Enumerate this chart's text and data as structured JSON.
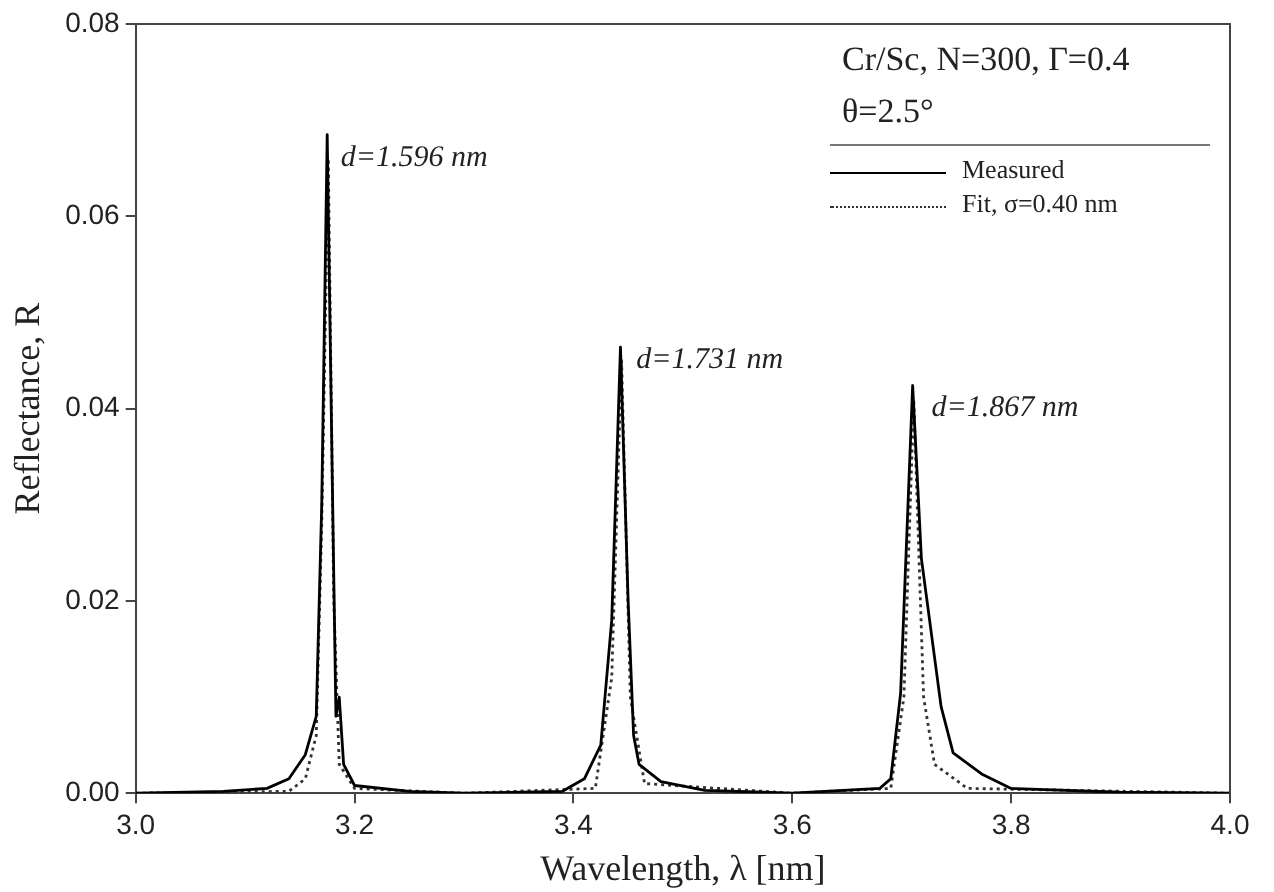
{
  "chart_data": {
    "type": "line",
    "xlabel": "Wavelength, λ [nm]",
    "ylabel": "Reflectance, R",
    "legend": "top right",
    "grid": false,
    "marker": "none",
    "xlim": [
      3.0,
      4.0
    ],
    "xticks": [
      {
        "value": 3.0,
        "label": "3.0"
      },
      {
        "value": 3.2,
        "label": "3.2"
      },
      {
        "value": 3.4,
        "label": "3.4"
      },
      {
        "value": 3.6,
        "label": "3.6"
      },
      {
        "value": 3.8,
        "label": "3.8"
      },
      {
        "value": 4.0,
        "label": "4.0"
      }
    ],
    "ylim": [
      0,
      0.08
    ],
    "yticks": [
      {
        "value": 0,
        "label": "0.00"
      },
      {
        "value": 0.02,
        "label": "0.02"
      },
      {
        "value": 0.04,
        "label": "0.04"
      },
      {
        "value": 0.06,
        "label": "0.06"
      },
      {
        "value": 0.08,
        "label": "0.08"
      }
    ],
    "annotations": [
      "Cr/Sc, N=300, Γ=0.4",
      "θ=2.5°",
      {
        "text": "d=1.596 nm",
        "x": 3.18,
        "y": 0.066
      },
      {
        "text": "d=1.731 nm",
        "x": 3.45,
        "y": 0.045
      },
      {
        "text": "d=1.867 nm",
        "x": 3.72,
        "y": 0.04
      }
    ],
    "series": [
      {
        "name": "Measured",
        "color": "#000000",
        "line_style": "solid",
        "x": [
          3.0,
          3.08,
          3.12,
          3.14,
          3.155,
          3.165,
          3.17,
          3.175,
          3.18,
          3.183,
          3.186,
          3.19,
          3.2,
          3.25,
          3.3,
          3.39,
          3.41,
          3.425,
          3.435,
          3.443,
          3.45,
          3.455,
          3.46,
          3.48,
          3.52,
          3.6,
          3.68,
          3.69,
          3.699,
          3.71,
          3.718,
          3.736,
          3.747,
          3.773,
          3.8,
          3.9,
          4.0
        ],
        "values": [
          0,
          0.0002,
          0.0005,
          0.0015,
          0.004,
          0.008,
          0.03,
          0.0685,
          0.03,
          0.008,
          0.01,
          0.003,
          0.0008,
          0.0002,
          0,
          0.0002,
          0.0015,
          0.005,
          0.018,
          0.0464,
          0.02,
          0.006,
          0.003,
          0.0012,
          0.0003,
          0,
          0.0005,
          0.0015,
          0.0104,
          0.0424,
          0.0244,
          0.009,
          0.0042,
          0.002,
          0.0005,
          0.0001,
          0
        ]
      },
      {
        "name": "Fit, σ=0.40 nm",
        "color": "#333333",
        "line_style": "dotted",
        "x": [
          3.0,
          3.14,
          3.155,
          3.165,
          3.17,
          3.176,
          3.181,
          3.186,
          3.2,
          3.3,
          3.42,
          3.435,
          3.444,
          3.452,
          3.465,
          3.6,
          3.69,
          3.702,
          3.711,
          3.72,
          3.73,
          3.76,
          4.0
        ],
        "values": [
          0,
          0.0002,
          0.0015,
          0.006,
          0.028,
          0.066,
          0.02,
          0.003,
          0.0005,
          0,
          0.0005,
          0.012,
          0.045,
          0.01,
          0.001,
          0,
          0.0005,
          0.01,
          0.041,
          0.01,
          0.003,
          0.0005,
          0
        ]
      }
    ]
  }
}
